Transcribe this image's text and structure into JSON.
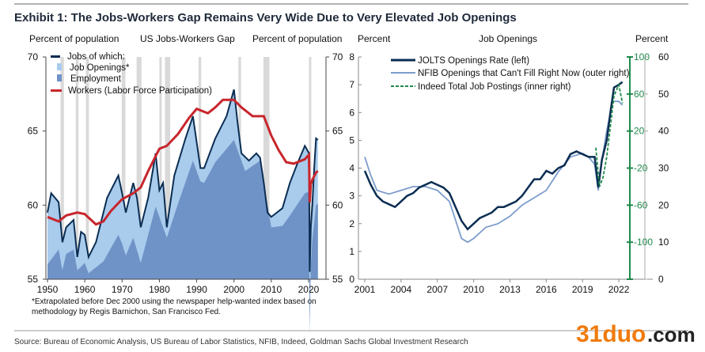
{
  "title": "Exhibit 1: The Jobs-Workers Gap Remains Very Wide Due to Very Elevated Job Openings",
  "footnote_lines": [
    "*Extrapolated before Dec 2000 using the newspaper help-wanted index based on",
    "methodology by Regis Barnichon, San Francisco Fed."
  ],
  "source": "Source: Bureau of Economic Analysis, US Bureau of Labor Statistics, NFIB, Indeed, Goldman Sachs Global Investment Research",
  "watermark": {
    "brand": "31duo",
    "suffix": ".com"
  },
  "colors": {
    "navy": "#0b2d52",
    "light_blue": "#a9cbec",
    "mid_blue": "#6f93c7",
    "red": "#c8262d",
    "green": "#1e8a4a",
    "recession": "#d9d9d9",
    "nfib": "#7d9ccc"
  },
  "chart_data": [
    {
      "type": "area",
      "title": "US Jobs-Workers Gap",
      "ylabel_left": "Percent of population",
      "ylabel_right": "Percent of population",
      "ylim": [
        55,
        70
      ],
      "yticks": [
        "70",
        "65",
        "60",
        "55"
      ],
      "xticks": [
        "1950",
        "1960",
        "1970",
        "1980",
        "1990",
        "2000",
        "2010",
        "2020"
      ],
      "xlim": [
        1950,
        2023
      ],
      "legend": [
        "Jobs of which:",
        "Job Openings*",
        "Employment",
        "Workers (Labor Force Participation)"
      ],
      "recessions": [
        [
          1953.5,
          1954.4
        ],
        [
          1957.6,
          1958.3
        ],
        [
          1960.3,
          1961.1
        ],
        [
          1969.9,
          1970.9
        ],
        [
          1973.9,
          1975.2
        ],
        [
          1980.0,
          1980.5
        ],
        [
          1981.5,
          1982.9
        ],
        [
          1990.5,
          1991.2
        ],
        [
          2001.2,
          2001.9
        ],
        [
          2007.9,
          2009.5
        ],
        [
          2020.1,
          2020.4
        ]
      ],
      "series": [
        {
          "name": "Jobs (total)",
          "x": [
            1950,
            1951,
            1953,
            1954,
            1955,
            1957,
            1958,
            1959,
            1960,
            1961,
            1963,
            1966,
            1969,
            1970,
            1971,
            1973,
            1974,
            1975,
            1977,
            1979,
            1980,
            1981,
            1982,
            1984,
            1987,
            1989,
            1991,
            1992,
            1995,
            1998,
            2000,
            2001,
            2002,
            2004,
            2006,
            2007,
            2008,
            2009,
            2010,
            2013,
            2015,
            2017,
            2019,
            2020.1,
            2020.3,
            2020.6,
            2021,
            2021.5,
            2022,
            2022.5
          ],
          "y": [
            59.5,
            60.8,
            60.2,
            57.5,
            58.5,
            59.0,
            56.5,
            58.2,
            58.0,
            56.5,
            57.5,
            60.5,
            62.0,
            60.8,
            59.5,
            61.5,
            60.5,
            58.5,
            60.5,
            63.5,
            61.0,
            61.5,
            58.5,
            62.0,
            64.5,
            66.0,
            62.5,
            62.5,
            64.5,
            66.0,
            67.8,
            65.5,
            63.5,
            63.0,
            63.5,
            63.2,
            61.5,
            59.5,
            59.2,
            59.8,
            61.5,
            62.8,
            64.0,
            63.5,
            55.5,
            58.5,
            60.0,
            62.5,
            64.5,
            64.4
          ]
        },
        {
          "name": "Employment",
          "x": [
            1950,
            1953,
            1954,
            1955,
            1957,
            1958,
            1960,
            1961,
            1965,
            1969,
            1970,
            1971,
            1973,
            1975,
            1979,
            1980,
            1982,
            1985,
            1989,
            1991,
            1992,
            1995,
            2000,
            2003,
            2007,
            2010,
            2013,
            2015,
            2019,
            2020.1,
            2020.3,
            2020.6,
            2021,
            2022,
            2022.5
          ],
          "y": [
            56.0,
            57.0,
            55.6,
            56.7,
            57.0,
            55.6,
            56.1,
            55.4,
            56.2,
            58.0,
            57.4,
            56.6,
            57.8,
            56.1,
            59.9,
            59.2,
            57.8,
            60.1,
            63.0,
            61.6,
            61.5,
            62.9,
            64.4,
            62.3,
            63.0,
            58.5,
            58.6,
            59.3,
            60.8,
            60.9,
            51.3,
            56.0,
            57.6,
            60.0,
            60.1
          ]
        },
        {
          "name": "Workers (Labor Force Participation)",
          "x": [
            1950,
            1953,
            1955,
            1958,
            1960,
            1963,
            1965,
            1967,
            1970,
            1973,
            1975,
            1977,
            1980,
            1982,
            1985,
            1988,
            1990,
            1993,
            1995,
            1997,
            2000,
            2002,
            2005,
            2008,
            2010,
            2012,
            2014,
            2016,
            2019,
            2020.1,
            2020.3,
            2020.6,
            2021,
            2022,
            2022.5
          ],
          "y": [
            59.2,
            58.9,
            59.3,
            59.5,
            59.4,
            58.7,
            58.9,
            59.6,
            60.4,
            60.8,
            61.2,
            62.3,
            63.8,
            64.0,
            64.8,
            65.9,
            66.5,
            66.2,
            66.6,
            67.1,
            67.1,
            66.6,
            66.0,
            66.0,
            64.7,
            63.7,
            62.9,
            62.8,
            63.1,
            63.4,
            60.2,
            61.4,
            61.7,
            62.2,
            62.3
          ]
        }
      ]
    },
    {
      "type": "line",
      "title": "Job Openings",
      "ylabel_left": "Percent",
      "ylabel_right": "Percent",
      "xticks": [
        "2001",
        "2004",
        "2007",
        "2010",
        "2013",
        "2016",
        "2019",
        "2022"
      ],
      "xlim": [
        2001,
        2024
      ],
      "yticks_left": [
        "8",
        "7",
        "6",
        "5",
        "4",
        "3",
        "2",
        "1",
        "0"
      ],
      "ylim_left": [
        0,
        8
      ],
      "yticks_inner_right": [
        "100",
        "60",
        "20",
        "-20",
        "-60",
        "-100"
      ],
      "ylim_inner_right": [
        -140,
        100
      ],
      "yticks_outer_right": [
        "60",
        "50",
        "40",
        "30",
        "20",
        "10",
        "0"
      ],
      "ylim_outer_right": [
        0,
        60
      ],
      "legend": [
        "JOLTS Openings Rate (left)",
        "NFIB Openings that Can't Fill Right Now (outer right)",
        "Indeed Total Job Postings (inner right)"
      ],
      "series": [
        {
          "name": "JOLTS Openings Rate (left)",
          "axis": "left",
          "x": [
            2001,
            2001.5,
            2002,
            2002.5,
            2003,
            2003.5,
            2004,
            2004.5,
            2005,
            2005.5,
            2006,
            2006.5,
            2007,
            2007.5,
            2008,
            2008.5,
            2009,
            2009.5,
            2010,
            2010.5,
            2011,
            2011.5,
            2012,
            2012.5,
            2013,
            2013.5,
            2014,
            2014.5,
            2015,
            2015.5,
            2016,
            2016.5,
            2017,
            2017.5,
            2018,
            2018.5,
            2019,
            2019.5,
            2020,
            2020.3,
            2020.6,
            2021,
            2021.3,
            2021.6,
            2022,
            2022.3
          ],
          "y": [
            3.9,
            3.4,
            3.0,
            2.8,
            2.7,
            2.6,
            2.8,
            3.0,
            3.1,
            3.3,
            3.4,
            3.5,
            3.4,
            3.3,
            3.1,
            2.6,
            2.1,
            1.8,
            2.0,
            2.2,
            2.3,
            2.4,
            2.6,
            2.6,
            2.7,
            2.8,
            3.0,
            3.3,
            3.6,
            3.6,
            3.9,
            3.8,
            4.0,
            4.1,
            4.5,
            4.6,
            4.5,
            4.4,
            4.4,
            3.3,
            4.3,
            5.0,
            6.0,
            6.9,
            7.0,
            7.1
          ]
        },
        {
          "name": "NFIB Openings that Can't Fill Right Now (outer right)",
          "axis": "outer_right",
          "x": [
            2001,
            2001.5,
            2002,
            2003,
            2004,
            2005,
            2006,
            2007,
            2008,
            2008.5,
            2009,
            2009.5,
            2010,
            2011,
            2012,
            2013,
            2014,
            2015,
            2016,
            2017,
            2018,
            2019,
            2019.5,
            2020,
            2020.3,
            2020.6,
            2021,
            2021.5,
            2022,
            2022.3
          ],
          "y": [
            33,
            28,
            24,
            23,
            24,
            25,
            25,
            24,
            21,
            16,
            11,
            10,
            11,
            14,
            15,
            17,
            20,
            22,
            24,
            29,
            33,
            34,
            33,
            31,
            24,
            32,
            40,
            48,
            48,
            47
          ]
        },
        {
          "name": "Indeed Total Job Postings (inner right)",
          "axis": "inner_right",
          "x": [
            2020.1,
            2020.4,
            2020.7,
            2021,
            2021.3,
            2021.6,
            2022,
            2022.3
          ],
          "y": [
            2,
            -40,
            -30,
            -8,
            25,
            58,
            70,
            50
          ]
        }
      ]
    }
  ]
}
